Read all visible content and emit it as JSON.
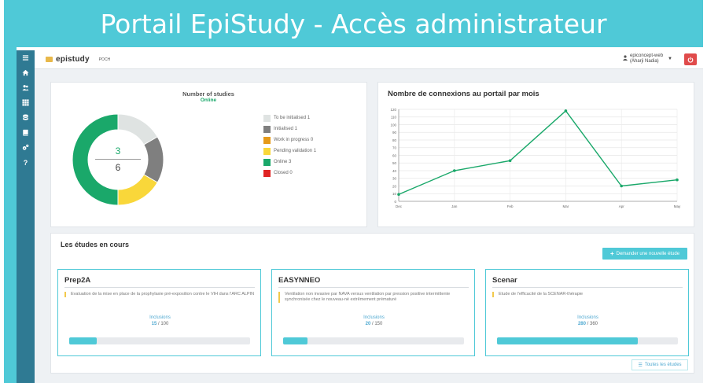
{
  "banner": {
    "title": "Portail EpiStudy - Accès administrateur"
  },
  "sidebar": {
    "items": [
      {
        "icon": "menu-icon"
      },
      {
        "icon": "home-icon"
      },
      {
        "icon": "users-icon"
      },
      {
        "icon": "grid-icon"
      },
      {
        "icon": "database-icon"
      },
      {
        "icon": "book-icon"
      },
      {
        "icon": "cogs-icon"
      },
      {
        "icon": "help-icon",
        "glyph": "?"
      }
    ]
  },
  "header": {
    "logo_text": "epistudy",
    "logo_secondary": "POCH",
    "user_line1": "epiconcept-web",
    "user_line2": "(Aharji Nadia)"
  },
  "donut_panel": {
    "title": "Number of studies",
    "subtitle": "Online",
    "center_numerator": "3",
    "center_denominator": "6",
    "legend": [
      {
        "label": "To be initialised 1",
        "color": "#dfe3e2"
      },
      {
        "label": "Initialised 1",
        "color": "#7f7f7f"
      },
      {
        "label": "Work in progress 0",
        "color": "#e59a1a"
      },
      {
        "label": "Pending validation 1",
        "color": "#f9d73a"
      },
      {
        "label": "Online 3",
        "color": "#1aa86a"
      },
      {
        "label": "Closed 0",
        "color": "#e02424"
      }
    ],
    "slices": [
      {
        "name": "To be initialised",
        "value": 1,
        "color": "#dfe3e2"
      },
      {
        "name": "Initialised",
        "value": 1,
        "color": "#7f7f7f"
      },
      {
        "name": "Pending validation",
        "value": 1,
        "color": "#f9d73a"
      },
      {
        "name": "Online",
        "value": 3,
        "color": "#1aa86a"
      }
    ]
  },
  "line_panel": {
    "title": "Nombre de connexions au portail par mois"
  },
  "chart_data": {
    "type": "line",
    "x": [
      "Dec",
      "Jan",
      "Feb",
      "Mar",
      "Apr",
      "May"
    ],
    "series": [
      {
        "values": [
          9,
          40,
          53,
          118,
          20,
          28
        ]
      }
    ],
    "ylim": [
      0,
      120
    ],
    "yticks": [
      "0",
      "10",
      "20",
      "30",
      "40",
      "50",
      "60",
      "70",
      "80",
      "90",
      "100",
      "110",
      "120"
    ],
    "grid": true,
    "color": "#1aa86a"
  },
  "studies": {
    "title": "Les études en cours",
    "new_button": "Demander une nouvelle étude",
    "all_button": "Toutes les études",
    "cards": [
      {
        "name": "Prep2A",
        "description": "Evaluation de la mise en place de la prophylaxie pré-exposition contre le VIH dans l'ARC ALPIN",
        "inclusions_label": "Inclusions",
        "current": "15",
        "total": "100",
        "progress": 0.15
      },
      {
        "name": "EASYNNEO",
        "description": "Ventilation non invasive par NAVA versus ventilation par pression positive intermittente synchronisée chez le nouveau-né extrêmement prématuré",
        "inclusions_label": "Inclusions",
        "current": "20",
        "total": "150",
        "progress": 0.133
      },
      {
        "name": "Scenar",
        "description": "Etude de l'efficacité de la SCENAR-thérapie",
        "inclusions_label": "Inclusions",
        "current": "280",
        "total": "360",
        "progress": 0.78
      }
    ]
  }
}
